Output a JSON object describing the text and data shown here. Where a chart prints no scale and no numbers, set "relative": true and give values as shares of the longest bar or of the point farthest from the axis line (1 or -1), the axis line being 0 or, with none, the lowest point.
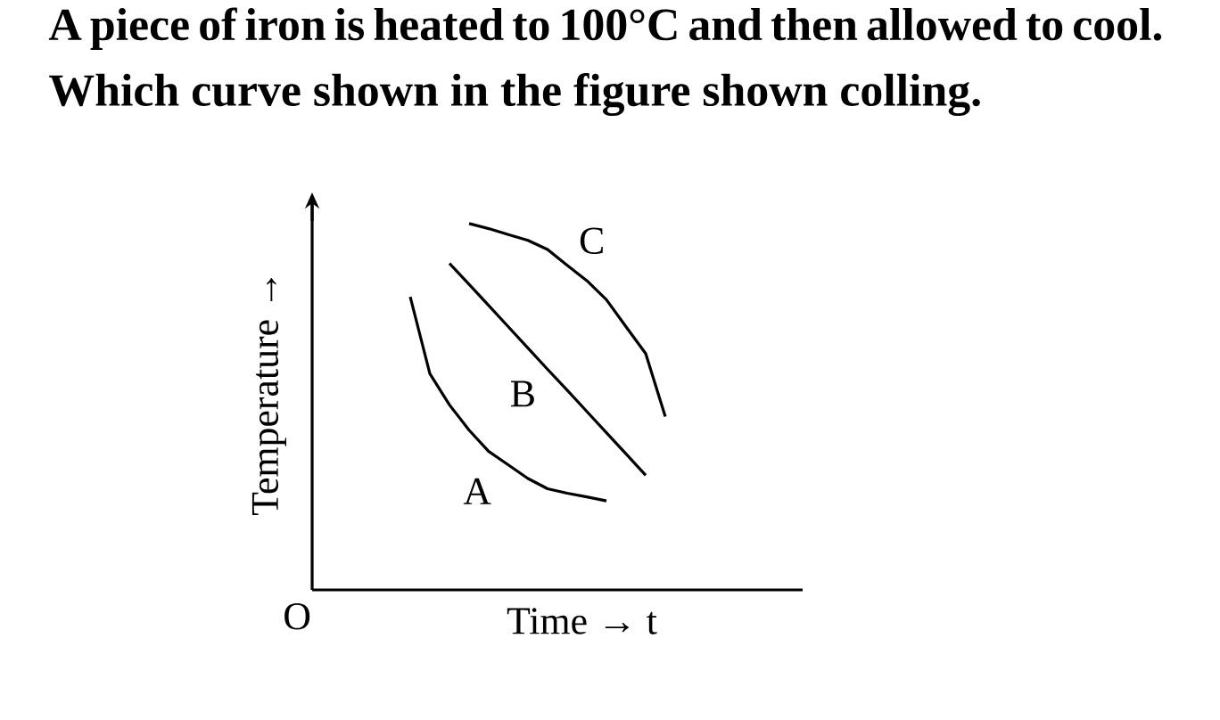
{
  "chart_data": {
    "type": "line",
    "title": "A piece of iron is heated to 100°C and then allowed to cool. Which curve shown in the figure shown colling.",
    "xlabel": "Time → t",
    "ylabel": "Temperature →",
    "annotations": [
      "O"
    ],
    "relative": true,
    "marker": "none",
    "line_style": "solid",
    "categories": [
      null,
      null,
      null,
      null,
      null,
      null,
      null,
      null,
      null,
      null,
      null,
      null,
      null,
      null,
      null,
      null,
      null,
      null,
      null,
      null,
      null,
      null,
      null,
      null,
      null,
      null
    ],
    "series": [
      {
        "name": "A",
        "color": "#000000",
        "values": [
          null,
          null,
          null,
          null,
          null,
          0.8,
          0.59,
          0.505,
          0.436,
          0.378,
          0.341,
          0.304,
          0.276,
          0.264,
          0.254,
          0.243,
          null,
          null,
          null,
          null,
          null,
          null,
          null,
          null,
          null,
          null
        ]
      },
      {
        "name": "B",
        "color": "#000000",
        "values": [
          null,
          null,
          null,
          null,
          null,
          null,
          null,
          0.891,
          0.834,
          0.776,
          0.718,
          0.66,
          0.602,
          0.545,
          0.487,
          0.429,
          0.371,
          0.313,
          null,
          null,
          null,
          null,
          null,
          null,
          null,
          null
        ]
      },
      {
        "name": "C",
        "color": "#000000",
        "values": [
          null,
          null,
          null,
          null,
          null,
          null,
          null,
          null,
          1,
          0.986,
          0.97,
          0.954,
          0.929,
          0.886,
          0.844,
          0.792,
          0.718,
          0.645,
          0.473,
          null,
          null,
          null,
          null,
          null,
          null,
          null
        ]
      }
    ]
  }
}
